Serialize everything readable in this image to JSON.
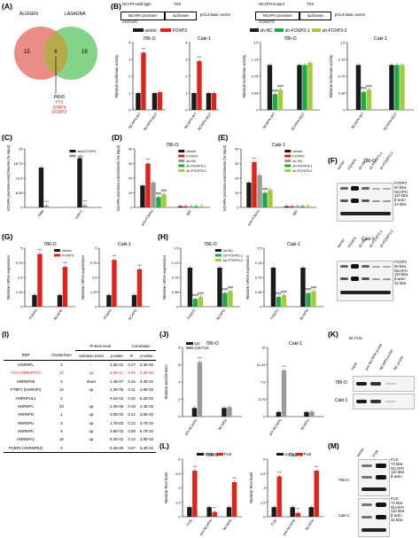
{
  "panel_letters": [
    "(A)",
    "(B)",
    "(C)",
    "(D)",
    "(E)",
    "(F)",
    "(G)",
    "(H)",
    "(I)",
    "(J)",
    "(K)",
    "(L)",
    "(M)"
  ],
  "colors": {
    "black": "#1a1a1a",
    "red": "#e0231a",
    "grey": "#9a9a9a",
    "green": "#1fa84a",
    "lime": "#a4cc3a"
  },
  "panelA": {
    "set1": "ALGGEN",
    "set2": "LASAGNA",
    "left_only": "15",
    "overlap": "4",
    "right_only": "18",
    "factors": [
      "PAX5",
      "YY1",
      "STAT4",
      "FOXP3"
    ]
  },
  "panelB": {
    "wt_construct": "NCAPH-wild-type",
    "mut_construct": "NCAPH-mutant",
    "tss": "TSS",
    "promoter": "NCAPH promoter",
    "luciferase": "luciferase",
    "vector_name": "pGL3-basic vector",
    "wt_seq": "AACAAC",
    "mut_seq": "CCGGTC",
    "legend_left": [
      "vector",
      "FOXP3"
    ],
    "legend_right": [
      "sh-NC",
      "sh-FOXP3-1",
      "sh-FOXP3-2"
    ],
    "ylabel": "Relative luciferase activity"
  },
  "panelF": {
    "top_cell": "786-O",
    "bottom_cell": "Caki-1",
    "lanes": [
      "vector",
      "FOXP3",
      "sh-NC",
      "sh-FOXP3-1",
      "sh-FOXP3-2"
    ],
    "bands": [
      {
        "name": "FOXP3",
        "mw": "50 kDa"
      },
      {
        "name": "NCAPH",
        "mw": "110 kDa"
      },
      {
        "name": "β-actin",
        "mw": "42 kDa"
      }
    ]
  },
  "panelI": {
    "group_headers": [
      "Protein level",
      "Correlation"
    ],
    "headers": [
      "RBP",
      "ClusterNum",
      "Variation trend",
      "p-value",
      "R",
      "p-value"
    ],
    "rows": [
      [
        "HNRNPL",
        "3",
        "-",
        "2.3E-01",
        "0.17",
        "2.3E-02"
      ],
      [
        "FUS (HNRNPP2)",
        "10",
        "up",
        "5.3E-11",
        "0.36",
        "2.3E-06"
      ],
      [
        "HNRNPAB",
        "3",
        "down",
        "1.4E-07",
        "0.15",
        "3.3E-02"
      ],
      [
        "PTBP1 (HNRNPI)",
        "14",
        "up",
        "2.3E-05",
        "0.11",
        "4.9E-02"
      ],
      [
        "HNRNPUL1",
        "2",
        "-",
        "9.1E-02",
        "0.10",
        "5.2E-02"
      ],
      [
        "HNRNPC",
        "33",
        "up",
        "2.3E-05",
        "0.18",
        "2.4E-02"
      ],
      [
        "HNRNPD",
        "1",
        "up",
        "3.0E-02",
        "0.12",
        "3.8E-02"
      ],
      [
        "HNRNPU",
        "3",
        "up",
        "1.7E-03",
        "0.13",
        "3.7E-02"
      ],
      [
        "HNRNPK",
        "3",
        "up",
        "3.8E-03",
        "0.09",
        "5.7E-02"
      ],
      [
        "HNRNPA1",
        "15",
        "up",
        "6.2E-02",
        "0.13",
        "3.8E-02"
      ],
      [
        "PCBP2 (HNRNPE2)",
        "3",
        "-",
        "6.4E-06",
        "0.07",
        "6.3E-02"
      ]
    ],
    "highlight_row": 1
  },
  "panelK": {
    "title": "IB: FUS",
    "lanes": [
      "Input",
      "pre-NCAPH probe",
      "NCAPH probe",
      "NC probe"
    ],
    "rows": [
      "786-O",
      "Caki-1"
    ]
  },
  "panelM": {
    "lanes": [
      "vector",
      "FUS"
    ],
    "top_cell": "786-O",
    "bottom_cell": "Caki-1",
    "bands": [
      {
        "name": "FUS",
        "mw": "73 kDa"
      },
      {
        "name": "NCAPH",
        "mw": "110 kDa"
      },
      {
        "name": "β-actin",
        "mw": "42 kDa"
      }
    ]
  },
  "chart_data": [
    {
      "id": "B1",
      "type": "bar",
      "title": "786-O",
      "categories": [
        "NCAPH-WT",
        "NCAPH-MUT"
      ],
      "ylabel": "Relative luciferase activity",
      "ylim": [
        0,
        4
      ],
      "series": [
        {
          "name": "vector",
          "values": [
            1.0,
            1.0
          ]
        },
        {
          "name": "FOXP3",
          "values": [
            3.4,
            1.05
          ]
        }
      ],
      "annotations": [
        "***"
      ]
    },
    {
      "id": "B2",
      "type": "bar",
      "title": "Caki-1",
      "categories": [
        "NCAPH-WT",
        "NCAPH-MUT"
      ],
      "ylabel": "",
      "ylim": [
        0,
        4
      ],
      "series": [
        {
          "name": "vector",
          "values": [
            1.0,
            1.0
          ]
        },
        {
          "name": "FOXP3",
          "values": [
            2.9,
            1.0
          ]
        }
      ],
      "annotations": [
        "***"
      ]
    },
    {
      "id": "B3",
      "type": "bar",
      "title": "786-O",
      "categories": [
        "NCAPH-WT",
        "NCAPH-MUT"
      ],
      "ylabel": "Relative luciferase activity",
      "ylim": [
        0,
        1.5
      ],
      "series": [
        {
          "name": "sh-NC",
          "values": [
            1.0,
            1.0
          ]
        },
        {
          "name": "sh-FOXP3-1",
          "values": [
            0.35,
            1.0
          ]
        },
        {
          "name": "sh-FOXP3-2",
          "values": [
            0.45,
            1.05
          ]
        }
      ],
      "annotations": [
        "###",
        "###"
      ]
    },
    {
      "id": "B4",
      "type": "bar",
      "title": "Caki-1",
      "categories": [
        "NCAPH-WT",
        "NCAPH-MUT"
      ],
      "ylabel": "Relative luciferase activity",
      "ylim": [
        0,
        1.5
      ],
      "series": [
        {
          "name": "sh-NC",
          "values": [
            1.0,
            1.0
          ]
        },
        {
          "name": "sh-FOXP3-1",
          "values": [
            0.4,
            1.0
          ]
        },
        {
          "name": "sh-FOXP3-2",
          "values": [
            0.45,
            1.0
          ]
        }
      ],
      "annotations": [
        "###",
        "###"
      ]
    },
    {
      "id": "C",
      "type": "bar",
      "categories": [
        "7860",
        "Caki-1"
      ],
      "ylabel": "NCAPH promoter enrichments (% Input)",
      "ylim": [
        0,
        25
      ],
      "series": [
        {
          "name": "anti-FOXP3",
          "values": [
            17,
            21
          ]
        },
        {
          "name": "IgG",
          "values": [
            0.8,
            0.9
          ]
        }
      ],
      "annotations": [
        "***",
        "***"
      ]
    },
    {
      "id": "D",
      "type": "bar",
      "title": "786-O",
      "categories": [
        "anti-FOXP3",
        "IgG"
      ],
      "ylabel": "NCAPH promoter enrichments (% Input)",
      "ylim": [
        0,
        40
      ],
      "series": [
        {
          "name": "vector",
          "values": [
            15,
            0.8
          ]
        },
        {
          "name": "FOXP3",
          "values": [
            30,
            0.8
          ]
        },
        {
          "name": "sh-NC",
          "values": [
            17,
            0.8
          ]
        },
        {
          "name": "sh-FOXP3-1",
          "values": [
            7,
            0.8
          ]
        },
        {
          "name": "sh-FOXP3-2",
          "values": [
            9,
            0.8
          ]
        }
      ],
      "annotations": [
        "***",
        "###",
        "###"
      ]
    },
    {
      "id": "E",
      "type": "bar",
      "title": "Caki-1",
      "categories": [
        "anti-FOXP3",
        "IgG"
      ],
      "ylabel": "NCAPH promoter enrichments (% Input)",
      "ylim": [
        0,
        40
      ],
      "series": [
        {
          "name": "vector",
          "values": [
            17,
            0.8
          ]
        },
        {
          "name": "FOXP3",
          "values": [
            31,
            0.8
          ]
        },
        {
          "name": "sh-NC",
          "values": [
            22,
            0.8
          ]
        },
        {
          "name": "sh-FOXP3-1",
          "values": [
            10,
            0.8
          ]
        },
        {
          "name": "sh-FOXP3-2",
          "values": [
            12,
            0.8
          ]
        }
      ],
      "annotations": [
        "***",
        "###",
        "###"
      ]
    },
    {
      "id": "G1",
      "type": "bar",
      "title": "786-O",
      "categories": [
        "FOXP3",
        "NCAPH"
      ],
      "ylabel": "Relative mRNA expression",
      "ylim": [
        0,
        5
      ],
      "series": [
        {
          "name": "vector",
          "values": [
            1.0,
            1.0
          ]
        },
        {
          "name": "FOXP3",
          "values": [
            4.5,
            3.4
          ]
        }
      ],
      "annotations": [
        "***",
        "***"
      ]
    },
    {
      "id": "G2",
      "type": "bar",
      "title": "Caki-1",
      "categories": [
        "FOXP3",
        "NCAPH"
      ],
      "ylabel": "Relative mRNA expression",
      "ylim": [
        0,
        5
      ],
      "series": [
        {
          "name": "vector",
          "values": [
            1.0,
            1.0
          ]
        },
        {
          "name": "FOXP3",
          "values": [
            4.0,
            3.2
          ]
        }
      ],
      "annotations": [
        "***",
        "***"
      ]
    },
    {
      "id": "H1",
      "type": "bar",
      "title": "786-O",
      "categories": [
        "FOXP3",
        "NCAPH"
      ],
      "ylabel": "Relative mRNA expression",
      "ylim": [
        0,
        1.5
      ],
      "series": [
        {
          "name": "sh-NC",
          "values": [
            1.0,
            1.0
          ]
        },
        {
          "name": "sh-FOXP3-1",
          "values": [
            0.2,
            0.35
          ]
        },
        {
          "name": "sh-FOXP3-2",
          "values": [
            0.25,
            0.4
          ]
        }
      ],
      "annotations": [
        "###",
        "###",
        "###",
        "###"
      ]
    },
    {
      "id": "H2",
      "type": "bar",
      "title": "Caki-1",
      "categories": [
        "FOXP3",
        "NCAPH"
      ],
      "ylabel": "Relative mRNA expression",
      "ylim": [
        0,
        1.5
      ],
      "series": [
        {
          "name": "sh-NC",
          "values": [
            1.0,
            1.0
          ]
        },
        {
          "name": "sh-FOXP3-1",
          "values": [
            0.25,
            0.35
          ]
        },
        {
          "name": "sh-FOXP3-2",
          "values": [
            0.3,
            0.4
          ]
        }
      ],
      "annotations": [
        "###",
        "###",
        "###",
        "###"
      ]
    },
    {
      "id": "J1",
      "type": "bar",
      "title": "786-O",
      "categories": [
        "pre-NCAPH",
        "NCAPH"
      ],
      "ylabel": "Relative enrichments",
      "ylim": [
        0,
        8
      ],
      "series": [
        {
          "name": "IgG",
          "values": [
            1.0,
            1.0
          ]
        },
        {
          "name": "anti-FUS",
          "values": [
            6.3,
            1.1
          ]
        }
      ],
      "annotations": [
        "***"
      ]
    },
    {
      "id": "J2",
      "type": "bar",
      "title": "Caki-1",
      "categories": [
        "pre-NCAPH",
        "NCAPH"
      ],
      "ylabel": "",
      "ylim": [
        0,
        15
      ],
      "series": [
        {
          "name": "IgG",
          "values": [
            1.0,
            1.0
          ]
        },
        {
          "name": "anti-FUS",
          "values": [
            10,
            1.1
          ]
        }
      ],
      "annotations": [
        "***"
      ]
    },
    {
      "id": "L1",
      "type": "bar",
      "title": "786-O",
      "categories": [
        "FUS",
        "pre-NCAPH",
        "NCAPH"
      ],
      "ylabel": "Relative RNA level",
      "ylim": [
        0,
        6
      ],
      "series": [
        {
          "name": "vector",
          "values": [
            1.0,
            1.0,
            1.0
          ]
        },
        {
          "name": "FUS",
          "values": [
            4.8,
            0.5,
            3.6
          ]
        }
      ],
      "annotations": [
        "***",
        "**",
        "***"
      ]
    },
    {
      "id": "L2",
      "type": "bar",
      "title": "Caki-1",
      "categories": [
        "FUS",
        "pre-NCAPH",
        "NCAPH"
      ],
      "ylabel": "Relative RNA level",
      "ylim": [
        0,
        6
      ],
      "series": [
        {
          "name": "vector",
          "values": [
            1.0,
            1.0,
            1.0
          ]
        },
        {
          "name": "FUS",
          "values": [
            4.2,
            0.4,
            4.8
          ]
        }
      ],
      "annotations": [
        "***",
        "**",
        "***"
      ]
    }
  ]
}
